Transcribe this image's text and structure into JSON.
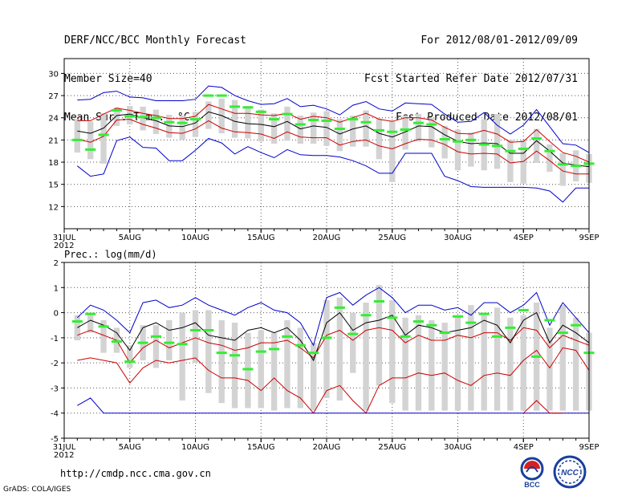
{
  "header": {
    "left": [
      "DERF/NCC/BCC Monthly Forecast",
      "Member Size=40",
      "Mean Surf. Temp.: °C"
    ],
    "right": [
      "For 2012/08/01-2012/09/09",
      "Fcst Started Refer Date 2012/07/31",
      "Fcst Produced Date 2012/08/01"
    ]
  },
  "footer": {
    "url": "http://cmdp.ncc.cma.gov.cn",
    "credit": "GrADS: COLA/IGES",
    "logos": [
      "BCC",
      "NCC"
    ]
  },
  "colors": {
    "max_min": "#0000cc",
    "spread": "#cc0000",
    "mean": "#000000",
    "bar": "#d3d3d3",
    "mode": "#33ee33"
  },
  "chart_data": [
    {
      "type": "line",
      "title": "Mean Surf. Temp.: °C",
      "x_tick_labels": [
        "31JUL",
        "5AUG",
        "10AUG",
        "15AUG",
        "20AUG",
        "25AUG",
        "30AUG",
        "4SEP",
        "9SEP"
      ],
      "x_year_label": "2012",
      "x_tick_days": [
        0,
        5,
        10,
        15,
        20,
        25,
        30,
        35,
        40
      ],
      "ylim": [
        9,
        32
      ],
      "y_ticks": [
        12,
        15,
        18,
        21,
        24,
        27,
        30
      ],
      "days": [
        1,
        2,
        3,
        4,
        5,
        6,
        7,
        8,
        9,
        10,
        11,
        12,
        13,
        14,
        15,
        16,
        17,
        18,
        19,
        20,
        21,
        22,
        23,
        24,
        25,
        26,
        27,
        28,
        29,
        30,
        31,
        32,
        33,
        34,
        35,
        36,
        37,
        38,
        39,
        40
      ],
      "series": [
        {
          "name": "ensemble max",
          "color": "#0000cc",
          "values": [
            26.4,
            26.5,
            27.4,
            27.6,
            26.8,
            26.7,
            26.3,
            26.3,
            26.3,
            26.5,
            28.3,
            28.1,
            27.0,
            26.3,
            25.8,
            25.9,
            26.6,
            25.5,
            25.7,
            25.2,
            24.4,
            25.7,
            26.2,
            25.2,
            24.9,
            26.0,
            25.9,
            25.8,
            24.5,
            23.4,
            23.5,
            24.7,
            23.0,
            21.8,
            23.0,
            25.1,
            22.8,
            20.5,
            20.3,
            19.3
          ]
        },
        {
          "name": "upper spread",
          "color": "#cc0000",
          "values": [
            23.6,
            23.6,
            24.5,
            25.3,
            25.0,
            24.6,
            24.3,
            23.9,
            23.9,
            24.2,
            25.8,
            25.2,
            24.6,
            24.6,
            24.4,
            24.3,
            24.6,
            23.8,
            24.2,
            24.0,
            23.4,
            24.0,
            24.6,
            23.8,
            23.5,
            24.0,
            24.0,
            23.7,
            22.7,
            21.9,
            21.8,
            22.3,
            21.8,
            20.7,
            20.8,
            22.4,
            20.8,
            19.3,
            18.8,
            18.0
          ]
        },
        {
          "name": "ensemble mean",
          "color": "#000000",
          "values": [
            22.2,
            21.9,
            22.6,
            24.3,
            24.5,
            24.0,
            23.6,
            22.9,
            22.8,
            23.3,
            24.8,
            24.3,
            23.5,
            23.2,
            23.1,
            22.8,
            23.5,
            22.5,
            22.9,
            22.7,
            21.8,
            22.5,
            22.9,
            21.9,
            21.4,
            22.1,
            22.9,
            22.8,
            21.7,
            20.8,
            20.5,
            20.6,
            20.5,
            19.2,
            19.2,
            20.9,
            19.5,
            17.9,
            17.6,
            17.4
          ]
        },
        {
          "name": "lower spread",
          "color": "#cc0000",
          "values": [
            21.1,
            20.7,
            21.5,
            23.7,
            23.8,
            23.1,
            22.6,
            22.0,
            21.9,
            22.5,
            23.6,
            22.6,
            22.1,
            22.0,
            21.8,
            21.2,
            22.1,
            21.4,
            21.3,
            21.3,
            20.3,
            20.8,
            21.0,
            20.2,
            19.8,
            20.5,
            21.1,
            21.0,
            20.4,
            19.4,
            19.1,
            19.2,
            19.1,
            17.9,
            18.1,
            19.5,
            18.2,
            16.8,
            16.4,
            16.4
          ]
        },
        {
          "name": "ensemble min",
          "color": "#0000cc",
          "values": [
            17.5,
            16.1,
            16.4,
            20.9,
            21.4,
            20.0,
            19.9,
            18.2,
            18.2,
            19.6,
            21.2,
            20.6,
            19.1,
            20.1,
            19.3,
            18.6,
            19.7,
            19.0,
            18.9,
            18.9,
            18.7,
            18.2,
            17.5,
            16.5,
            16.5,
            19.2,
            19.2,
            19.2,
            16.1,
            15.5,
            14.7,
            14.6,
            14.6,
            14.6,
            14.6,
            14.5,
            14.1,
            12.6,
            14.5,
            14.5
          ]
        }
      ],
      "box_low": [
        19.3,
        18.4,
        17.8,
        22.9,
        23.1,
        22.3,
        21.8,
        21.3,
        21.0,
        21.4,
        22.5,
        21.9,
        21.3,
        21.2,
        20.8,
        20.5,
        20.9,
        20.5,
        20.5,
        20.2,
        19.5,
        20.1,
        20.1,
        18.4,
        15.3,
        19.7,
        20.8,
        20.0,
        18.5,
        16.9,
        17.4,
        16.9,
        17.1,
        15.3,
        15.1,
        17.9,
        16.7,
        14.8,
        15.4,
        15.2
      ],
      "box_high": [
        23.8,
        23.5,
        24.6,
        25.4,
        25.6,
        25.5,
        25.1,
        24.4,
        24.3,
        24.8,
        26.2,
        26.6,
        26.4,
        25.6,
        25.1,
        24.6,
        25.5,
        24.3,
        24.7,
        24.9,
        23.8,
        24.3,
        25.0,
        23.9,
        23.5,
        24.3,
        24.5,
        24.0,
        22.9,
        22.4,
        22.0,
        23.8,
        24.5,
        21.0,
        21.0,
        22.5,
        20.4,
        19.2,
        19.6,
        19.1
      ],
      "mode": [
        21.0,
        19.7,
        21.7,
        25.0,
        24.2,
        24.1,
        24.0,
        23.4,
        23.3,
        23.8,
        27.0,
        27.0,
        25.5,
        25.4,
        24.8,
        23.8,
        24.5,
        23.1,
        23.7,
        23.6,
        22.5,
        23.8,
        23.4,
        22.3,
        22.1,
        22.4,
        23.3,
        23.1,
        21.1,
        20.8,
        21.0,
        20.4,
        20.2,
        19.5,
        19.8,
        21.2,
        19.5,
        17.7,
        17.5,
        17.8
      ]
    },
    {
      "type": "line",
      "title": "Prec.: log(mm/d)",
      "x_tick_labels": [
        "31JUL",
        "5AUG",
        "10AUG",
        "15AUG",
        "20AUG",
        "25AUG",
        "30AUG",
        "4SEP",
        "9SEP"
      ],
      "x_year_label": "2012",
      "x_tick_days": [
        0,
        5,
        10,
        15,
        20,
        25,
        30,
        35,
        40
      ],
      "ylim": [
        -5,
        2
      ],
      "y_ticks": [
        -5,
        -4,
        -3,
        -2,
        -1,
        0,
        1,
        2
      ],
      "days": [
        1,
        2,
        3,
        4,
        5,
        6,
        7,
        8,
        9,
        10,
        11,
        12,
        13,
        14,
        15,
        16,
        17,
        18,
        19,
        20,
        21,
        22,
        23,
        24,
        25,
        26,
        27,
        28,
        29,
        30,
        31,
        32,
        33,
        34,
        35,
        36,
        37,
        38,
        39,
        40
      ],
      "series": [
        {
          "name": "ensemble max",
          "color": "#0000cc",
          "values": [
            -0.2,
            0.3,
            0.1,
            -0.3,
            -0.8,
            0.4,
            0.5,
            0.2,
            0.3,
            0.6,
            0.3,
            0.1,
            -0.1,
            0.2,
            0.4,
            0.1,
            0.0,
            -0.4,
            -1.3,
            0.6,
            0.8,
            0.3,
            0.7,
            1.0,
            0.6,
            0.0,
            0.3,
            0.3,
            0.1,
            0.2,
            -0.1,
            0.4,
            0.4,
            0.0,
            0.3,
            0.8,
            -0.5,
            0.4,
            -0.2,
            -0.8
          ]
        },
        {
          "name": "upper spread",
          "color": "#cc0000",
          "values": [
            -0.9,
            -0.7,
            -0.9,
            -1.1,
            -2.0,
            -1.4,
            -1.1,
            -1.4,
            -1.2,
            -1.0,
            -1.2,
            -1.3,
            -1.5,
            -1.4,
            -1.2,
            -1.2,
            -1.1,
            -1.4,
            -1.8,
            -0.9,
            -0.7,
            -1.1,
            -0.7,
            -0.6,
            -0.7,
            -1.2,
            -0.9,
            -1.1,
            -1.1,
            -0.9,
            -1.0,
            -0.8,
            -0.8,
            -1.1,
            -0.6,
            -0.7,
            -1.4,
            -0.9,
            -1.1,
            -1.3
          ]
        },
        {
          "name": "ensemble mean",
          "color": "#000000",
          "values": [
            -0.6,
            -0.3,
            -0.5,
            -0.8,
            -1.5,
            -0.6,
            -0.4,
            -0.7,
            -0.6,
            -0.4,
            -0.9,
            -1.0,
            -1.1,
            -0.7,
            -0.6,
            -0.8,
            -0.6,
            -1.1,
            -1.9,
            -0.4,
            0.0,
            -0.7,
            -0.4,
            -0.3,
            -0.1,
            -0.9,
            -0.5,
            -0.6,
            -0.8,
            -0.7,
            -0.6,
            -0.3,
            -0.5,
            -1.2,
            -0.3,
            0.0,
            -1.2,
            -0.5,
            -0.8,
            -1.2
          ]
        },
        {
          "name": "lower spread",
          "color": "#cc0000",
          "values": [
            -1.9,
            -1.8,
            -1.9,
            -2.0,
            -2.8,
            -2.2,
            -1.9,
            -2.0,
            -1.9,
            -1.8,
            -2.3,
            -2.6,
            -2.6,
            -2.7,
            -3.1,
            -2.6,
            -3.1,
            -3.4,
            -4.0,
            -3.1,
            -2.9,
            -3.5,
            -4.0,
            -2.9,
            -2.6,
            -2.6,
            -2.4,
            -2.5,
            -2.4,
            -2.7,
            -2.9,
            -2.5,
            -2.4,
            -2.5,
            -1.9,
            -1.5,
            -2.2,
            -1.4,
            -1.5,
            -2.3
          ]
        },
        {
          "name": "ensemble min",
          "color": "#0000cc",
          "values": [
            -3.7,
            -3.4,
            -4.0,
            -4.0,
            -4.0,
            -4.0,
            -4.0,
            -4.0,
            -4.0,
            -4.0,
            -4.0,
            -4.0,
            -4.0,
            -4.0,
            -4.0,
            -4.0,
            -4.0,
            -4.0,
            -4.0,
            -4.0,
            -4.0,
            -4.0,
            -4.0,
            -4.0,
            -4.0,
            -4.0,
            -4.0,
            -4.0,
            -4.0,
            -4.0,
            -4.0,
            -4.0,
            -4.0,
            -4.0,
            -4.0,
            -4.0,
            -4.0,
            -4.0,
            -4.0,
            -4.0
          ]
        },
        {
          "name": "lower spread tail",
          "color": "#cc0000",
          "values": [
            null,
            null,
            null,
            null,
            null,
            null,
            null,
            null,
            null,
            null,
            null,
            null,
            null,
            null,
            null,
            null,
            null,
            null,
            null,
            null,
            null,
            null,
            null,
            null,
            null,
            null,
            null,
            null,
            null,
            null,
            null,
            null,
            null,
            null,
            -4.0,
            -3.5,
            -4.0,
            -4.0,
            null,
            null
          ]
        }
      ],
      "box_low": [
        -1.1,
        -0.8,
        -1.6,
        -1.6,
        -2.2,
        -1.9,
        -2.2,
        -1.9,
        -3.5,
        -2.0,
        -3.2,
        -3.6,
        -3.8,
        -3.8,
        -3.8,
        -3.9,
        -3.8,
        -3.8,
        -3.9,
        -3.4,
        -3.5,
        -2.4,
        -3.9,
        -2.9,
        -3.6,
        -3.9,
        -3.9,
        -3.9,
        -3.9,
        -3.9,
        -3.9,
        -3.9,
        -3.9,
        -3.9,
        -3.9,
        -3.9,
        -3.9,
        -3.9,
        -3.9,
        -3.9
      ],
      "box_high": [
        -0.1,
        0.0,
        -0.3,
        -0.6,
        -1.3,
        -0.5,
        -0.5,
        -0.3,
        0.0,
        0.1,
        0.1,
        -0.3,
        -0.4,
        -0.8,
        -0.7,
        -0.8,
        -0.3,
        -0.6,
        -1.2,
        0.5,
        0.6,
        0.0,
        0.4,
        1.1,
        0.5,
        -0.2,
        -0.1,
        -0.3,
        -0.4,
        -0.1,
        0.3,
        -0.1,
        0.2,
        -0.2,
        -0.1,
        0.4,
        -0.6,
        0.3,
        -0.2,
        -0.8
      ],
      "mode": [
        -0.35,
        -0.05,
        -0.55,
        -1.15,
        -1.95,
        -1.2,
        -0.95,
        -1.2,
        -1.25,
        -0.7,
        -0.7,
        -1.6,
        -1.7,
        -2.25,
        -1.55,
        -1.45,
        -0.95,
        -1.3,
        -1.6,
        -1.0,
        0.2,
        -0.85,
        -0.1,
        0.45,
        -0.2,
        -0.95,
        -0.35,
        -0.5,
        -0.8,
        -0.15,
        -0.4,
        -0.05,
        -0.95,
        -0.6,
        0.1,
        -1.75,
        -0.3,
        -0.8,
        -0.5,
        -1.6
      ]
    }
  ]
}
